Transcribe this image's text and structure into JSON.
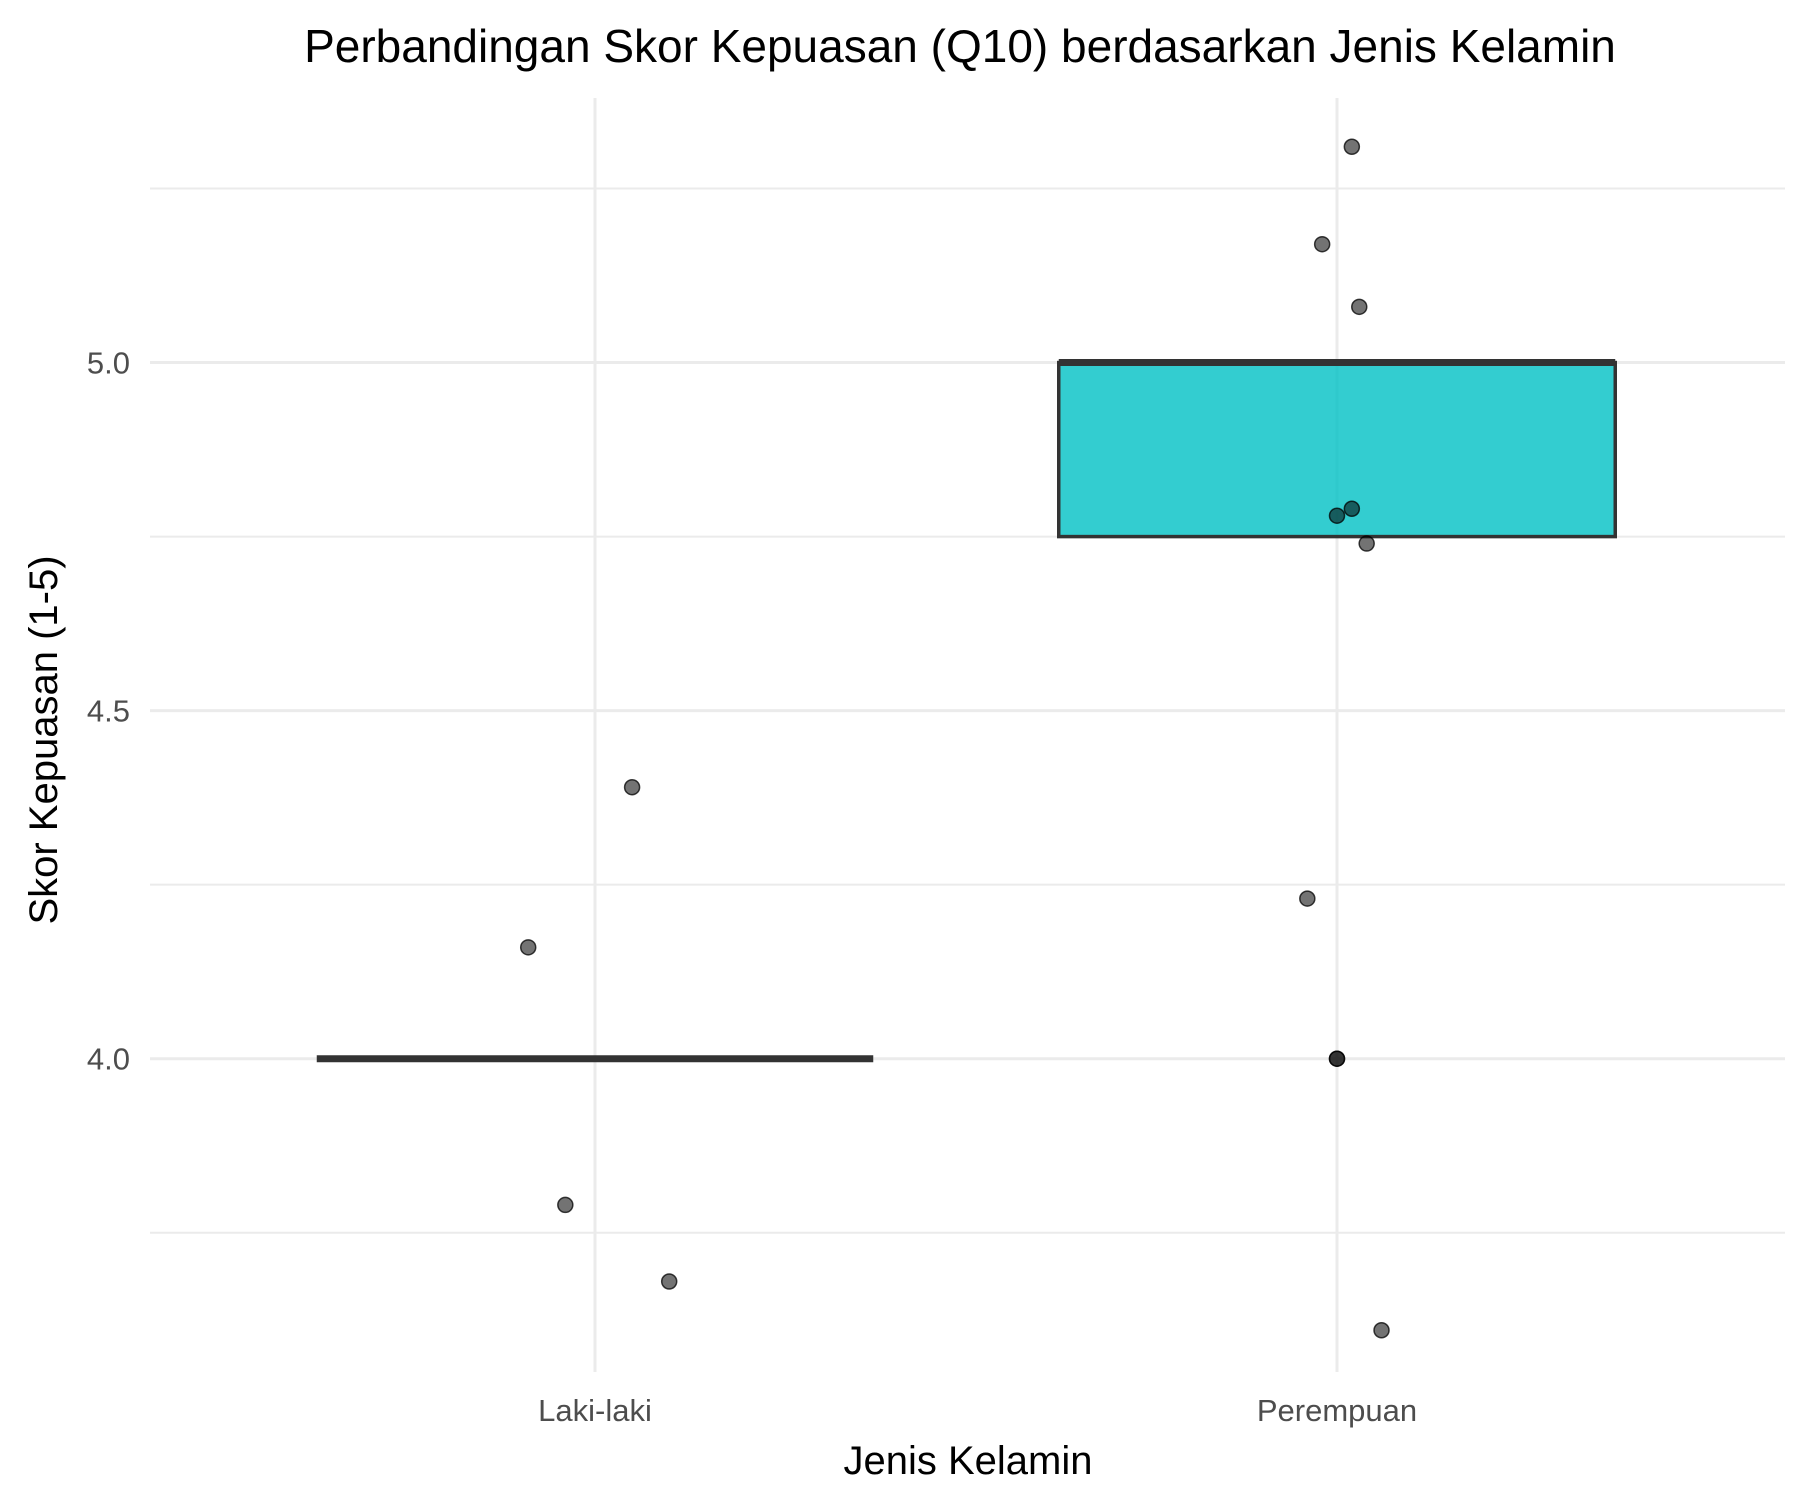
{
  "chart_data": {
    "type": "box",
    "title": "Perbandingan Skor Kepuasan (Q10) berdasarkan Jenis Kelamin",
    "xlabel": "Jenis Kelamin",
    "ylabel": "Skor Kepuasan (1-5)",
    "categories": [
      "Laki-laki",
      "Perempuan"
    ],
    "ylim": [
      3.55,
      5.38
    ],
    "yticks": [
      4.0,
      4.5,
      5.0
    ],
    "ytick_labels": [
      "4.0",
      "4.5",
      "5.0"
    ],
    "grid": true,
    "boxes": [
      {
        "category": "Laki-laki",
        "q1": 4.0,
        "median": 4.0,
        "q3": 4.0,
        "fill": "#00c0c4"
      },
      {
        "category": "Perempuan",
        "q1": 4.75,
        "median": 5.0,
        "q3": 5.0,
        "fill": "#00c0c4"
      }
    ],
    "points": [
      {
        "category": "Laki-laki",
        "jitter": -0.09,
        "y": 4.16
      },
      {
        "category": "Laki-laki",
        "jitter": 0.05,
        "y": 4.39
      },
      {
        "category": "Laki-laki",
        "jitter": -0.04,
        "y": 3.79
      },
      {
        "category": "Laki-laki",
        "jitter": 0.1,
        "y": 3.68
      },
      {
        "category": "Perempuan",
        "jitter": 0.02,
        "y": 5.31
      },
      {
        "category": "Perempuan",
        "jitter": -0.02,
        "y": 5.17
      },
      {
        "category": "Perempuan",
        "jitter": 0.03,
        "y": 5.08
      },
      {
        "category": "Perempuan",
        "jitter": 0.02,
        "y": 4.79
      },
      {
        "category": "Perempuan",
        "jitter": 0.0,
        "y": 4.78
      },
      {
        "category": "Perempuan",
        "jitter": 0.04,
        "y": 4.74
      },
      {
        "category": "Perempuan",
        "jitter": -0.04,
        "y": 4.23
      },
      {
        "category": "Perempuan",
        "jitter": 0.0,
        "y": 4.0
      },
      {
        "category": "Perempuan",
        "jitter": 0.0,
        "y": 4.0
      },
      {
        "category": "Perempuan",
        "jitter": 0.06,
        "y": 3.61
      }
    ],
    "colors": {
      "box_fill": "#00c0c4",
      "box_line": "#333333",
      "point": "#000000",
      "grid": "#ebebeb"
    }
  }
}
